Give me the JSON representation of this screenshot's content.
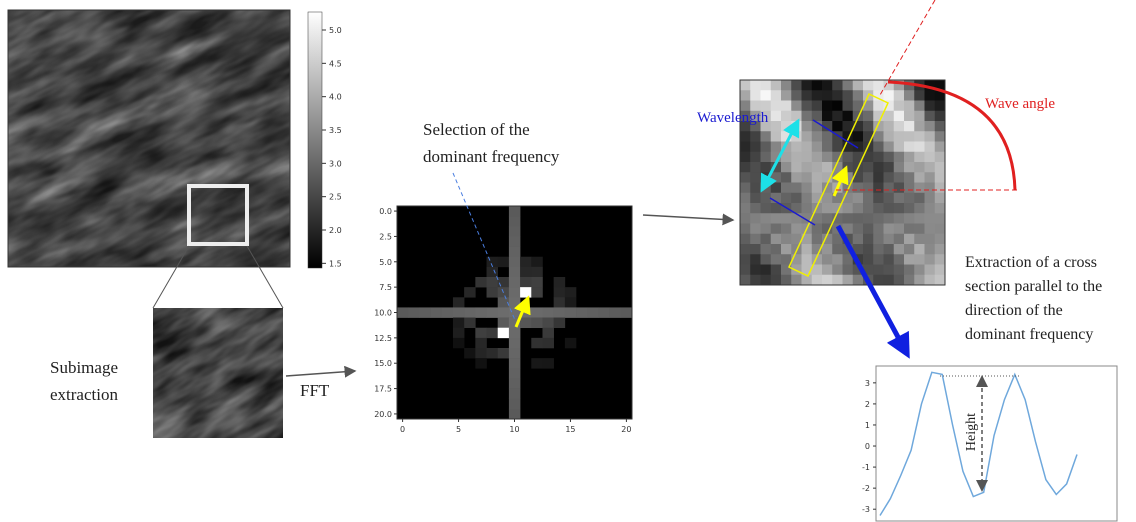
{
  "main_image": {
    "colorbar": {
      "lim": [
        1.43,
        5.27
      ],
      "ticks": [
        {
          "value": 5.0,
          "label": "5.0"
        },
        {
          "value": 4.5,
          "label": "4.5"
        },
        {
          "value": 4.0,
          "label": "4.0"
        },
        {
          "value": 3.5,
          "label": "3.5"
        },
        {
          "value": 3.0,
          "label": "3.0"
        },
        {
          "value": 2.5,
          "label": "2.5"
        },
        {
          "value": 2.0,
          "label": "2.0"
        },
        {
          "value": 1.5,
          "label": "1.5"
        }
      ]
    }
  },
  "labels": {
    "subimage": [
      "Subimage",
      "extraction"
    ],
    "fft": "FFT",
    "selection": [
      "Selection of the",
      "dominant frequency"
    ],
    "wavelength": "Wavelength",
    "wave_angle": "Wave angle",
    "extraction": [
      "Extraction of a cross",
      "section parallel to the",
      "direction of the",
      "dominant frequency"
    ],
    "height": "Height"
  },
  "fft_plot": {
    "xlim": [
      -0.5,
      20.5
    ],
    "ylim": [
      -0.5,
      20.5
    ],
    "xticks": [
      0,
      5,
      10,
      15,
      20
    ],
    "yticks": [
      {
        "value": 0,
        "label": "0.0"
      },
      {
        "value": 2.5,
        "label": "2.5"
      },
      {
        "value": 5,
        "label": "5.0"
      },
      {
        "value": 7.5,
        "label": "7.5"
      },
      {
        "value": 10,
        "label": "10.0"
      },
      {
        "value": 12.5,
        "label": "12.5"
      },
      {
        "value": 15,
        "label": "15.0"
      },
      {
        "value": 17.5,
        "label": "17.5"
      },
      {
        "value": 20,
        "label": "20.0"
      }
    ]
  },
  "profile_plot": {
    "ylim": [
      -3.56,
      3.8
    ],
    "yticks": [
      3,
      2,
      1,
      0,
      -1,
      -2,
      -3
    ],
    "values": [
      -3.3,
      -2.5,
      -1.4,
      -0.2,
      2.0,
      3.5,
      3.4,
      1.0,
      -1.2,
      -2.4,
      -2.2,
      0.5,
      2.2,
      3.4,
      2.2,
      0.2,
      -1.6,
      -2.3,
      -1.8,
      -0.4
    ]
  }
}
